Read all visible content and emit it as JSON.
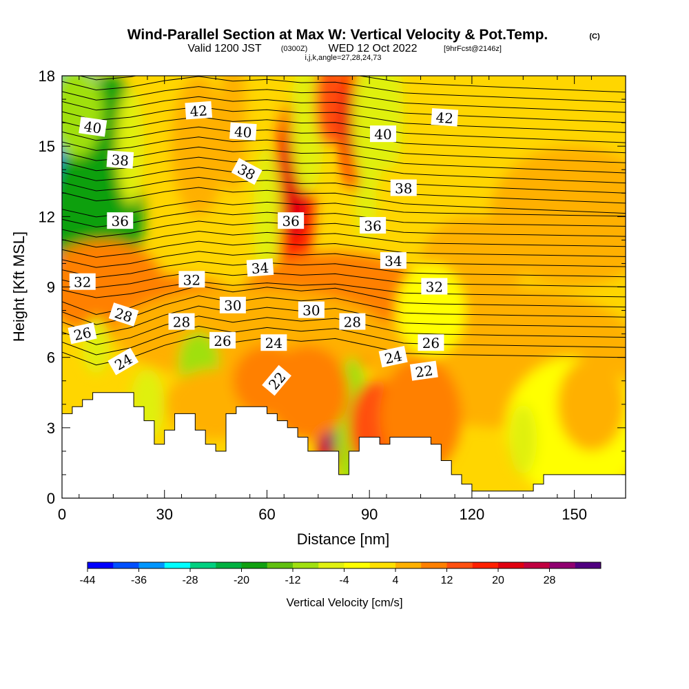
{
  "chart_data": {
    "type": "heatmap",
    "title": "Wind-Parallel Section at Max W: Vertical Velocity & Pot.Temp.",
    "title_mark": "(C)",
    "subtitle_main": "Valid 1200 JST",
    "subtitle_utc": "(0300Z)",
    "subtitle_date": "WED 12 Oct 2022",
    "subtitle_run": "[9hrFcst@2146z]",
    "index_note": "i,j,k,angle=27,28,24,73",
    "xlabel": "Distance [nm]",
    "ylabel": "Height [Kft MSL]",
    "xlim": [
      0,
      165
    ],
    "ylim": [
      0,
      18
    ],
    "x_ticks": [
      "0",
      "30",
      "60",
      "90",
      "120",
      "150"
    ],
    "y_ticks": [
      "0",
      "3",
      "6",
      "9",
      "12",
      "15",
      "18"
    ],
    "colorbar": {
      "label": "Vertical Velocity [cm/s]",
      "levels": [
        -44,
        -40,
        -36,
        -32,
        -28,
        -24,
        -20,
        -16,
        -12,
        -8,
        -4,
        0,
        4,
        8,
        12,
        16,
        20,
        24,
        28,
        32
      ],
      "tick_labels": [
        "-44",
        "-36",
        "-28",
        "-20",
        "-12",
        "-4",
        "4",
        "12",
        "20",
        "28"
      ],
      "colors": [
        "#0000ff",
        "#0050ff",
        "#0096ff",
        "#00ffff",
        "#00d080",
        "#00b040",
        "#10a010",
        "#60c010",
        "#a0e010",
        "#e0f010",
        "#ffff00",
        "#ffe000",
        "#ffb000",
        "#ff8000",
        "#ff5010",
        "#ff2000",
        "#e00010",
        "#c00040",
        "#900070",
        "#500080"
      ]
    },
    "contour_field": "Potential Temperature (C)",
    "contour_labels": [
      "42",
      "42",
      "40",
      "40",
      "40",
      "38",
      "38",
      "38",
      "36",
      "36",
      "36",
      "34",
      "34",
      "32",
      "32",
      "32",
      "30",
      "30",
      "28",
      "28",
      "28",
      "26",
      "26",
      "26",
      "24",
      "24",
      "24",
      "22",
      "22"
    ],
    "grid": false
  }
}
